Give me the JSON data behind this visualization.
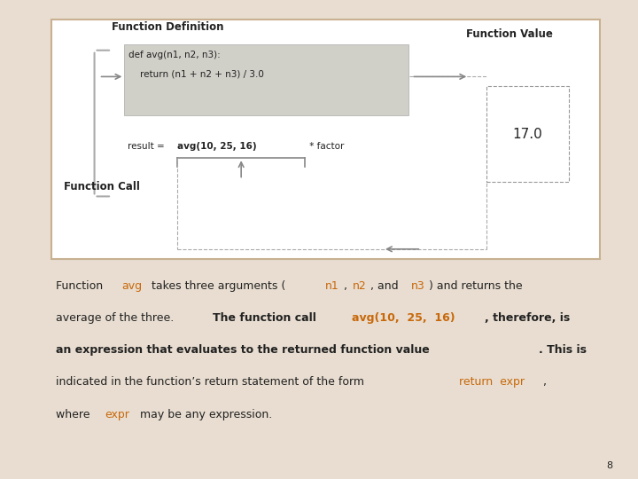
{
  "bg_color": "#e8ddd0",
  "panel_bg": "#ffffff",
  "panel_border": "#c8b090",
  "orange_color": "#c8680a",
  "gray_code_bg": "#d0cfc8",
  "dark_text": "#222222",
  "arrow_color": "#888888",
  "page_number": "8",
  "title_func_def": "Function Definition",
  "title_func_val": "Function Value",
  "title_func_call": "Function Call",
  "code_line1": "def avg(n1, n2, n3):",
  "code_line2": "    return (n1 + n2 + n3) / 3.0",
  "call_prefix": "result = ",
  "call_bold": "avg(10, 25, 16)",
  "call_suffix": " * factor",
  "func_value": "17.0",
  "body_lines": [
    [
      {
        "text": "Function ",
        "style": "normal"
      },
      {
        "text": "avg",
        "style": "orange_code"
      },
      {
        "text": " takes three arguments (",
        "style": "normal"
      },
      {
        "text": "n1",
        "style": "orange_code"
      },
      {
        "text": ", ",
        "style": "normal"
      },
      {
        "text": "n2",
        "style": "orange_code"
      },
      {
        "text": ", and ",
        "style": "normal"
      },
      {
        "text": "n3",
        "style": "orange_code"
      },
      {
        "text": ") and returns the",
        "style": "normal"
      }
    ],
    [
      {
        "text": "average of the three. ",
        "style": "normal"
      },
      {
        "text": "The function call ",
        "style": "bold"
      },
      {
        "text": "avg(10,  25,  16)",
        "style": "orange_bold_code"
      },
      {
        "text": ", therefore, is",
        "style": "bold"
      }
    ],
    [
      {
        "text": "an expression that evaluates to the returned function value",
        "style": "bold"
      },
      {
        "text": ". This is",
        "style": "bold"
      }
    ],
    [
      {
        "text": "indicated in the function’s return statement of the form ",
        "style": "normal"
      },
      {
        "text": "return  expr",
        "style": "orange_code"
      },
      {
        "text": ",",
        "style": "normal"
      }
    ],
    [
      {
        "text": "where ",
        "style": "normal"
      },
      {
        "text": "expr",
        "style": "orange_code"
      },
      {
        "text": " may be any expression.",
        "style": "normal"
      }
    ]
  ]
}
